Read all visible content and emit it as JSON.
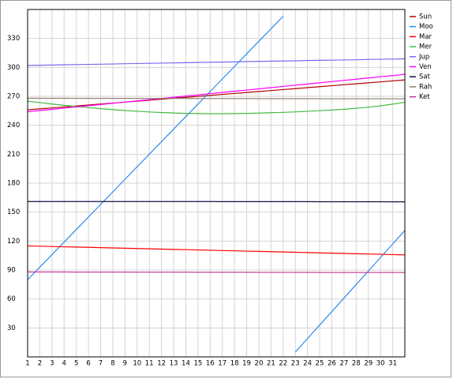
{
  "chart_data": {
    "type": "line",
    "x": [
      1,
      2,
      3,
      4,
      5,
      6,
      7,
      8,
      9,
      10,
      11,
      12,
      13,
      14,
      15,
      16,
      17,
      18,
      19,
      20,
      21,
      22,
      23,
      24,
      25,
      26,
      27,
      28,
      29,
      30,
      31,
      32
    ],
    "xlim": [
      1,
      32
    ],
    "xticks": [
      1,
      2,
      3,
      4,
      5,
      6,
      7,
      8,
      9,
      10,
      11,
      12,
      13,
      14,
      15,
      16,
      17,
      18,
      19,
      20,
      21,
      22,
      23,
      24,
      25,
      26,
      27,
      28,
      29,
      30,
      31
    ],
    "ylim": [
      0,
      360
    ],
    "yticks": [
      30,
      60,
      90,
      120,
      150,
      180,
      210,
      240,
      270,
      300,
      330
    ],
    "grid": true,
    "legend": "right",
    "series": [
      {
        "name": "Sun",
        "color": "#b00000",
        "values": [
          256,
          257,
          258,
          259,
          260,
          261,
          262,
          263,
          264,
          265,
          266,
          267,
          268,
          269,
          270,
          271,
          272,
          273,
          274,
          275,
          276,
          277,
          278,
          279,
          280,
          281,
          282,
          283,
          284,
          285,
          286,
          287
        ]
      },
      {
        "name": "Moo",
        "color": "#2a8cf0",
        "values": [
          80,
          93,
          106,
          119,
          132,
          145,
          158,
          171,
          184,
          197,
          210,
          223,
          236,
          249,
          262,
          275,
          288,
          301,
          314,
          327,
          340,
          353,
          5,
          19,
          33,
          47,
          61,
          75,
          89,
          103,
          117,
          131
        ]
      },
      {
        "name": "Mar",
        "color": "#ff0000",
        "values": [
          115,
          114.7,
          114.4,
          114.1,
          113.8,
          113.5,
          113.2,
          112.9,
          112.6,
          112.3,
          112,
          111.7,
          111.4,
          111.1,
          110.8,
          110.5,
          110.2,
          109.9,
          109.6,
          109.3,
          109,
          108.7,
          108.4,
          108.1,
          107.8,
          107.5,
          107.2,
          106.9,
          106.6,
          106.3,
          106,
          105.7
        ]
      },
      {
        "name": "Mer",
        "color": "#44bb44",
        "values": [
          265,
          263.5,
          262,
          260.7,
          259.5,
          258.3,
          257.2,
          256.2,
          255.3,
          254.5,
          253.8,
          253.2,
          252.7,
          252.3,
          252.1,
          252,
          252,
          252.1,
          252.3,
          252.6,
          253,
          253.4,
          253.9,
          254.5,
          255.1,
          255.8,
          256.6,
          257.6,
          258.8,
          260.2,
          261.9,
          263.8
        ]
      },
      {
        "name": "Jup",
        "color": "#7b68ee",
        "values": [
          302,
          302.2,
          302.4,
          302.7,
          302.9,
          303.1,
          303.3,
          303.5,
          303.8,
          304,
          304.2,
          304.4,
          304.6,
          304.9,
          305.1,
          305.3,
          305.5,
          305.7,
          306,
          306.2,
          306.4,
          306.6,
          306.8,
          307.1,
          307.3,
          307.5,
          307.7,
          307.9,
          308.2,
          308.4,
          308.6,
          308.8
        ]
      },
      {
        "name": "Ven",
        "color": "#ff00ff",
        "values": [
          254,
          255.3,
          256.5,
          257.8,
          259,
          260.3,
          261.5,
          262.8,
          264,
          265.3,
          266.5,
          267.8,
          269,
          270.3,
          271.5,
          272.8,
          274,
          275.3,
          276.5,
          277.8,
          279,
          280.3,
          281.5,
          282.8,
          284,
          285.3,
          286.5,
          287.8,
          289,
          290.3,
          291.5,
          292.8
        ]
      },
      {
        "name": "Sat",
        "color": "#101040",
        "values": [
          161,
          161,
          161,
          161,
          161,
          161,
          161,
          161,
          161,
          161,
          161,
          161,
          161,
          161,
          161,
          161,
          160.9,
          160.9,
          160.9,
          160.9,
          160.9,
          160.9,
          160.9,
          160.9,
          160.8,
          160.8,
          160.8,
          160.8,
          160.8,
          160.8,
          160.7,
          160.7
        ]
      },
      {
        "name": "Rah",
        "color": "#8b7b6b",
        "values": [
          268,
          268,
          268,
          268,
          267.9,
          267.9,
          267.9,
          267.9,
          267.9,
          267.8,
          267.8,
          267.8,
          267.8,
          267.8,
          267.7,
          267.7,
          267.7,
          267.7,
          267.7,
          267.6,
          267.6,
          267.6,
          267.6,
          267.6,
          267.5,
          267.5,
          267.5,
          267.5,
          267.5,
          267.5,
          267.5,
          267.5
        ]
      },
      {
        "name": "Ket",
        "color": "#c03090",
        "values": [
          88,
          88,
          88,
          88,
          87.9,
          87.9,
          87.9,
          87.9,
          87.9,
          87.8,
          87.8,
          87.8,
          87.8,
          87.8,
          87.7,
          87.7,
          87.7,
          87.7,
          87.7,
          87.6,
          87.6,
          87.6,
          87.6,
          87.6,
          87.5,
          87.5,
          87.5,
          87.5,
          87.5,
          87.5,
          87.5,
          87.5
        ]
      }
    ]
  }
}
